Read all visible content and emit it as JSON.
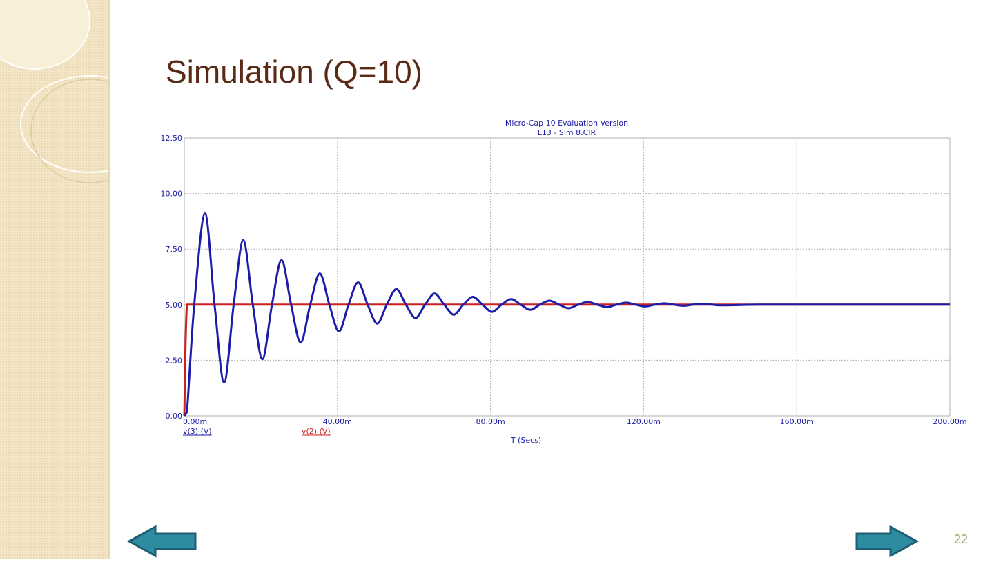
{
  "slide": {
    "title": "Simulation (Q=10)",
    "page_number": "22"
  },
  "chart_data": {
    "type": "line",
    "title": "Micro-Cap 10 Evaluation Version",
    "subtitle": "L13 - Sim 8.CIR",
    "x_label": "T (Secs)",
    "x": [
      0,
      0.0007,
      0.0026,
      0.0054,
      0.0079,
      0.0104,
      0.0129,
      0.0154,
      0.0179,
      0.0204,
      0.0229,
      0.0254,
      0.0279,
      0.0304,
      0.0329,
      0.0354,
      0.0379,
      0.0404,
      0.0429,
      0.0454,
      0.0479,
      0.0504,
      0.0529,
      0.0554,
      0.0579,
      0.0604,
      0.0629,
      0.0654,
      0.0679,
      0.0704,
      0.0729,
      0.0754,
      0.0779,
      0.0804,
      0.0829,
      0.0854,
      0.0879,
      0.0904,
      0.0929,
      0.0954,
      0.0979,
      0.1004,
      0.1029,
      0.1054,
      0.1079,
      0.1104,
      0.1129,
      0.1154,
      0.1179,
      0.1204,
      0.1229,
      0.1254,
      0.1279,
      0.1304,
      0.1329,
      0.1354,
      0.1379,
      0.1404,
      0.15,
      0.16,
      0.17,
      0.18,
      0.19,
      0.2
    ],
    "series": [
      {
        "name": "v(3) (V)",
        "color": "#1c1ca8",
        "values": [
          0,
          0.2,
          5,
          9.1,
          5,
          1.5,
          5,
          7.9,
          5,
          2.55,
          5,
          7.0,
          5,
          3.3,
          5,
          6.4,
          5,
          3.8,
          5,
          6.0,
          5,
          4.15,
          5,
          5.7,
          5,
          4.4,
          5,
          5.5,
          5,
          4.55,
          5,
          5.35,
          5,
          4.68,
          5,
          5.25,
          5,
          4.77,
          5,
          5.18,
          5,
          4.84,
          5,
          5.12,
          5,
          4.89,
          5,
          5.09,
          5,
          4.92,
          5,
          5.06,
          5,
          4.95,
          5,
          5.04,
          5,
          4.97,
          5,
          5,
          5,
          5,
          5,
          5
        ]
      },
      {
        "name": "v(2) (V)",
        "color": "#cc2020",
        "values": [
          0,
          5,
          5,
          5,
          5,
          5,
          5,
          5,
          5,
          5,
          5,
          5,
          5,
          5,
          5,
          5,
          5,
          5,
          5,
          5,
          5,
          5,
          5,
          5,
          5,
          5,
          5,
          5,
          5,
          5,
          5,
          5,
          5,
          5,
          5,
          5,
          5,
          5,
          5,
          5,
          5,
          5,
          5,
          5,
          5,
          5,
          5,
          5,
          5,
          5,
          5,
          5,
          5,
          5,
          5,
          5,
          5,
          5,
          5,
          5,
          5,
          5,
          5,
          5
        ]
      }
    ],
    "xlim": [
      0,
      0.2
    ],
    "xticks": [
      {
        "value": 0,
        "label": "0.00m"
      },
      {
        "value": 0.04,
        "label": "40.00m"
      },
      {
        "value": 0.08,
        "label": "80.00m"
      },
      {
        "value": 0.12,
        "label": "120.00m"
      },
      {
        "value": 0.16,
        "label": "160.00m"
      },
      {
        "value": 0.2,
        "label": "200.00m"
      }
    ],
    "ylim": [
      0,
      12.5
    ],
    "yticks": [
      {
        "value": 0,
        "label": "0.00"
      },
      {
        "value": 2.5,
        "label": "2.50"
      },
      {
        "value": 5,
        "label": "5.00"
      },
      {
        "value": 7.5,
        "label": "7.50"
      },
      {
        "value": 10,
        "label": "10.00"
      },
      {
        "value": 12.5,
        "label": "12.50"
      }
    ],
    "grid": true
  }
}
